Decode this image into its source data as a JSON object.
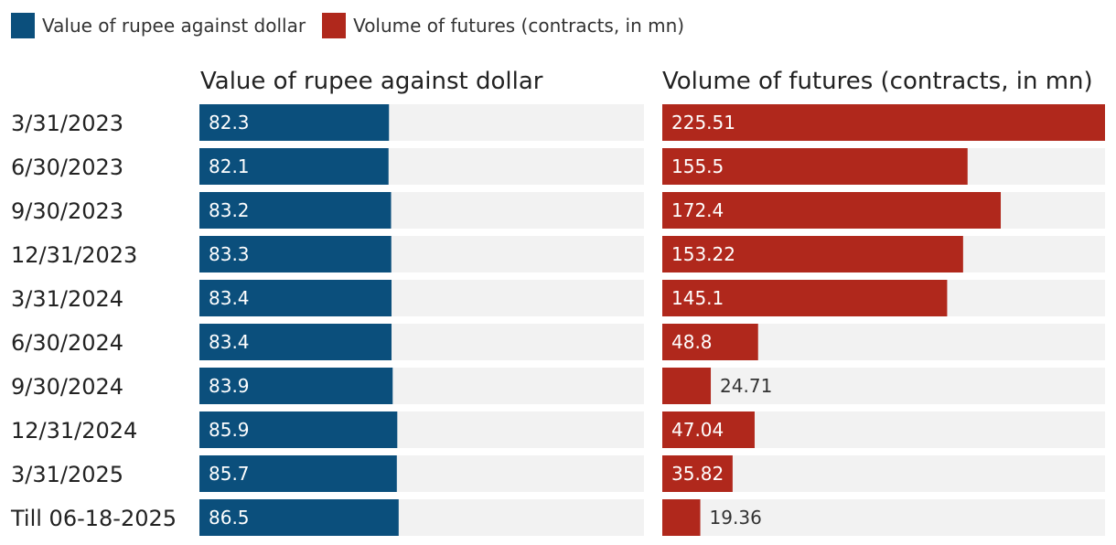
{
  "legend": [
    {
      "label": "Value of rupee against dollar",
      "color": "#0b4f7c"
    },
    {
      "label": "Volume of futures (contracts, in mn)",
      "color": "#b0281c"
    }
  ],
  "chart_data": {
    "type": "bar",
    "orientation": "horizontal",
    "categories": [
      "3/31/2023",
      "6/30/2023",
      "9/30/2023",
      "12/31/2023",
      "3/31/2024",
      "6/30/2024",
      "9/30/2024",
      "12/31/2024",
      "3/31/2025",
      "Till 06-18-2025"
    ],
    "series": [
      {
        "name": "Value of rupee against dollar",
        "color": "#0b4f7c",
        "values": [
          82.3,
          82.1,
          83.2,
          83.3,
          83.4,
          83.4,
          83.9,
          85.9,
          85.7,
          86.5
        ],
        "labels": [
          "82.3",
          "82.1",
          "83.2",
          "83.3",
          "83.4",
          "83.4",
          "83.9",
          "85.9",
          "85.7",
          "86.5"
        ],
        "xlim": [
          0,
          193
        ]
      },
      {
        "name": "Volume of futures (contracts, in mn)",
        "color": "#b0281c",
        "values": [
          225.51,
          155.5,
          172.4,
          153.22,
          145.1,
          48.8,
          24.71,
          47.04,
          35.82,
          19.36
        ],
        "labels": [
          "225.51",
          "155.5",
          "172.4",
          "153.22",
          "145.1",
          "48.8",
          "24.71",
          "47.04",
          "35.82",
          "19.36"
        ],
        "xlim": [
          0,
          225.51
        ]
      }
    ],
    "track_color": "#f2f2f2",
    "legend_position": "top-left",
    "grid": false
  }
}
